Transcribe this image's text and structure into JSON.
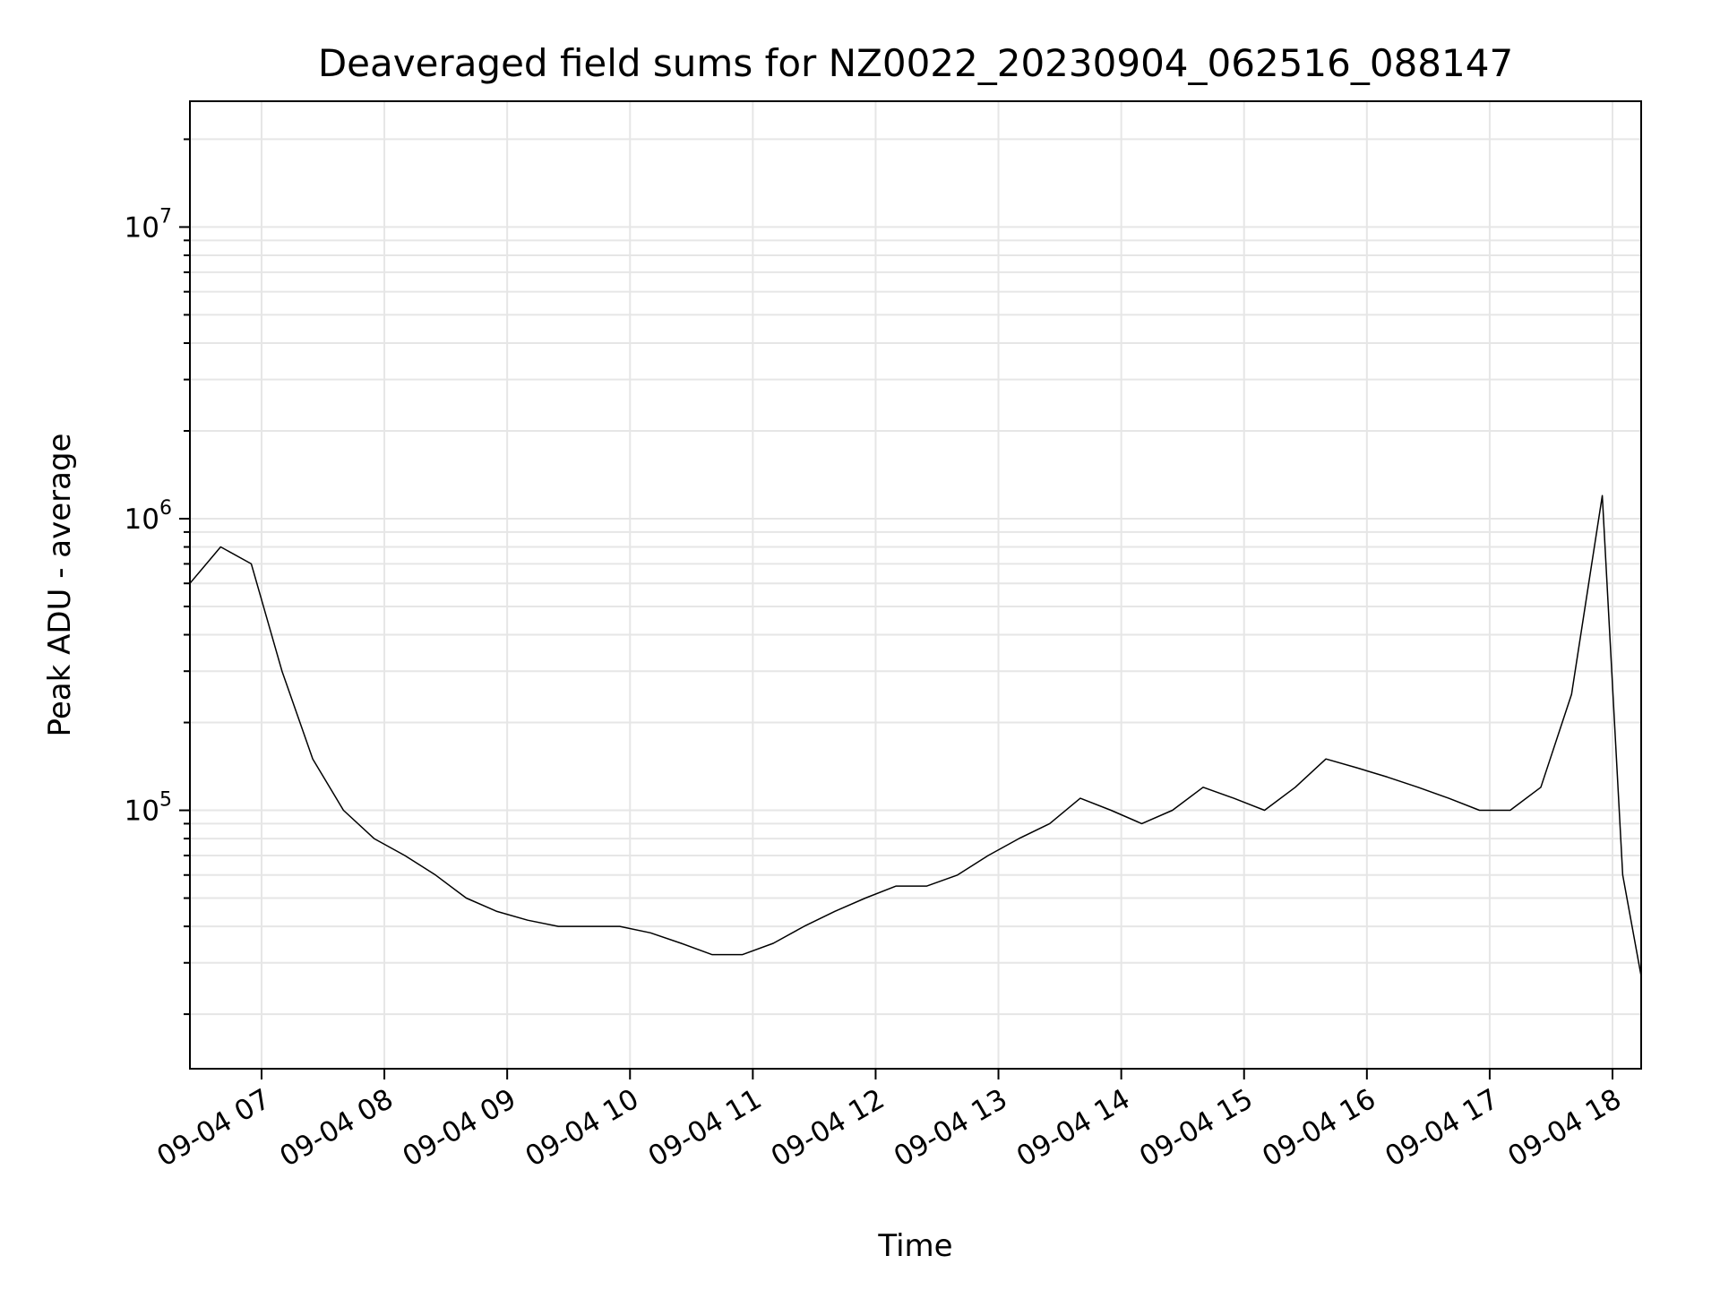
{
  "chart_data": {
    "type": "line",
    "title": "Deaveraged field sums for NZ0022_20230904_062516_088147",
    "xlabel": "Time",
    "ylabel": "Peak ADU - average",
    "yscale": "log",
    "ylim": [
      13000,
      27000000
    ],
    "xlim": [
      "2023-09-04 06:25",
      "2023-09-04 18:14"
    ],
    "x_tick_labels": [
      "09-04 07",
      "09-04 08",
      "09-04 09",
      "09-04 10",
      "09-04 11",
      "09-04 12",
      "09-04 13",
      "09-04 14",
      "09-04 15",
      "09-04 16",
      "09-04 17",
      "09-04 18"
    ],
    "y_tick_values": [
      100000,
      1000000,
      10000000
    ],
    "grid": true,
    "line_color": "#000000",
    "grid_color": "#e6e6e6",
    "series": [
      {
        "x": [
          "2023-09-04 06:25",
          "2023-09-04 06:40",
          "2023-09-04 06:55",
          "2023-09-04 07:10",
          "2023-09-04 07:25",
          "2023-09-04 07:40",
          "2023-09-04 07:55",
          "2023-09-04 08:10",
          "2023-09-04 08:25",
          "2023-09-04 08:40",
          "2023-09-04 08:55",
          "2023-09-04 09:10",
          "2023-09-04 09:25",
          "2023-09-04 09:40",
          "2023-09-04 09:55",
          "2023-09-04 10:10",
          "2023-09-04 10:25",
          "2023-09-04 10:40",
          "2023-09-04 10:55",
          "2023-09-04 11:10",
          "2023-09-04 11:25",
          "2023-09-04 11:40",
          "2023-09-04 11:55",
          "2023-09-04 12:10",
          "2023-09-04 12:25",
          "2023-09-04 12:40",
          "2023-09-04 12:55",
          "2023-09-04 13:10",
          "2023-09-04 13:25",
          "2023-09-04 13:40",
          "2023-09-04 13:55",
          "2023-09-04 14:10",
          "2023-09-04 14:25",
          "2023-09-04 14:40",
          "2023-09-04 14:55",
          "2023-09-04 15:10",
          "2023-09-04 15:25",
          "2023-09-04 15:40",
          "2023-09-04 15:55",
          "2023-09-04 16:10",
          "2023-09-04 16:25",
          "2023-09-04 16:40",
          "2023-09-04 16:55",
          "2023-09-04 17:10",
          "2023-09-04 17:25",
          "2023-09-04 17:40",
          "2023-09-04 17:55",
          "2023-09-04 18:05",
          "2023-09-04 18:14"
        ],
        "y": [
          600000,
          800000,
          700000,
          300000,
          150000,
          100000,
          80000,
          70000,
          60000,
          50000,
          45000,
          42000,
          40000,
          40000,
          40000,
          38000,
          35000,
          32000,
          32000,
          35000,
          40000,
          45000,
          50000,
          55000,
          55000,
          60000,
          70000,
          80000,
          90000,
          110000,
          100000,
          90000,
          100000,
          120000,
          110000,
          100000,
          120000,
          150000,
          140000,
          130000,
          120000,
          110000,
          100000,
          100000,
          120000,
          250000,
          1200000,
          60000,
          27000
        ]
      }
    ]
  }
}
